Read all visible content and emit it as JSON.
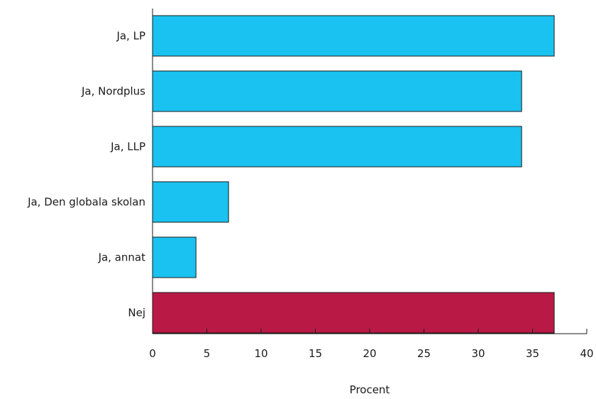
{
  "chart_data": {
    "type": "bar",
    "orientation": "horizontal",
    "categories": [
      "Ja, LP",
      "Ja, Nordplus",
      "Ja, LLP",
      "Ja, Den globala skolan",
      "Ja, annat",
      "Nej"
    ],
    "values": [
      37,
      34,
      34,
      7,
      4,
      37
    ],
    "bar_colors": [
      "#19c2f0",
      "#19c2f0",
      "#19c2f0",
      "#19c2f0",
      "#19c2f0",
      "#b81a45"
    ],
    "xlabel": "Procent",
    "ylabel": "",
    "xlim": [
      0,
      40
    ],
    "x_ticks": [
      0,
      5,
      10,
      15,
      20,
      25,
      30,
      35,
      40
    ],
    "x_tick_labels": [
      "0",
      "5",
      "10",
      "15",
      "20",
      "25",
      "30",
      "35",
      "40"
    ],
    "grid": false,
    "legend": "none"
  }
}
